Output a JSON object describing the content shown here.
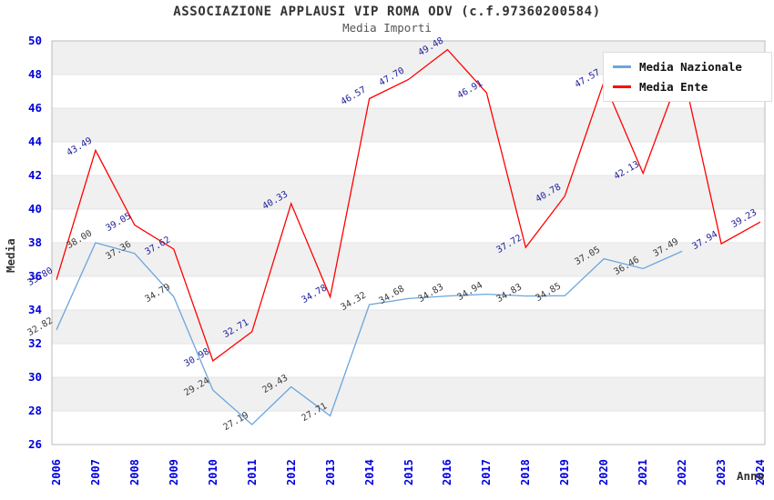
{
  "header": {
    "title": "ASSOCIAZIONE APPLAUSI VIP ROMA ODV (c.f.97360200584)",
    "subtitle": "Media Importi"
  },
  "chart_data": {
    "type": "line",
    "title": "ASSOCIAZIONE APPLAUSI VIP ROMA ODV (c.f.97360200584)",
    "subtitle": "Media Importi",
    "xlabel": "Anno",
    "ylabel": "Media",
    "x": [
      "2006",
      "2007",
      "2008",
      "2009",
      "2010",
      "2011",
      "2012",
      "2013",
      "2014",
      "2015",
      "2016",
      "2017",
      "2018",
      "2019",
      "2020",
      "2021",
      "2022",
      "2023",
      "2024"
    ],
    "ylim": [
      26,
      50
    ],
    "yticks": [
      26,
      28,
      30,
      32,
      34,
      36,
      38,
      40,
      42,
      44,
      46,
      48,
      50
    ],
    "grid": "alternating horizontal bands every 2 units",
    "legend_position": "top-right",
    "series": [
      {
        "name": "Media Nazionale",
        "color": "#6CA5DD",
        "label_color": "#3A3A3A",
        "values": [
          32.82,
          38.0,
          37.36,
          34.79,
          29.24,
          27.19,
          29.43,
          27.71,
          34.32,
          34.68,
          34.83,
          34.94,
          34.83,
          34.85,
          37.05,
          36.46,
          37.49
        ]
      },
      {
        "name": "Media Ente",
        "color": "#FF0000",
        "label_color": "#20209B",
        "values": [
          35.8,
          43.49,
          39.05,
          37.62,
          30.98,
          32.71,
          40.33,
          34.78,
          46.57,
          47.7,
          49.48,
          46.91,
          37.72,
          40.78,
          47.57,
          42.13,
          48.39,
          37.94,
          39.23
        ]
      }
    ],
    "notes": "Media Nazionale series ends at 2022. The 2020 and 2022 Media Ente labels are partially hidden behind the legend in the source image (values estimated from line position)."
  },
  "colors": {
    "band": "#F0F0F0",
    "gridline": "#E4E4E4",
    "plot_border": "#BBBBBB",
    "tick_label": "#0000DD",
    "title": "#333333",
    "subtitle": "#555555"
  }
}
